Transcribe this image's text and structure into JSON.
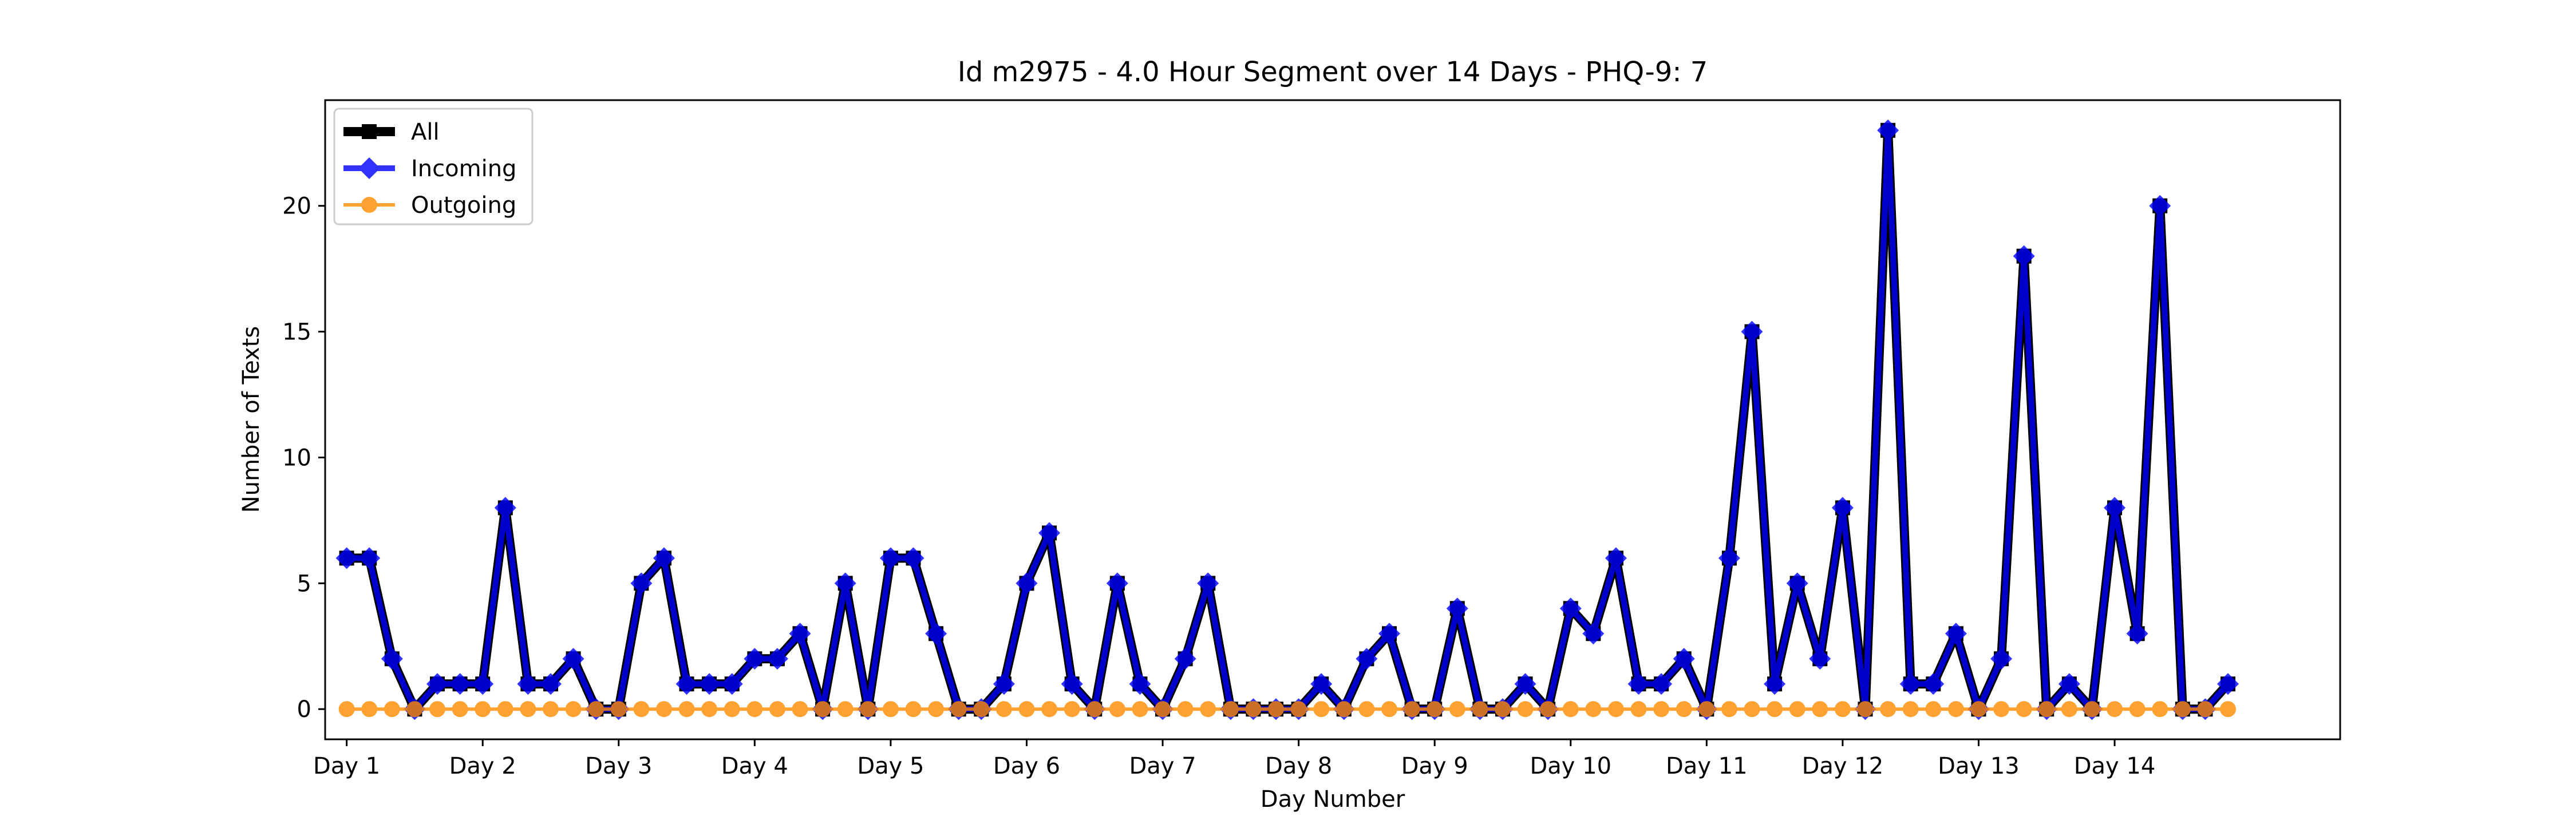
{
  "chart_data": {
    "type": "line",
    "title": "Id m2975 - 4.0 Hour Segment over 14 Days - PHQ-9: 7",
    "xlabel": "Day Number",
    "ylabel": "Number of Texts",
    "ylim": [
      -1.2,
      24.2
    ],
    "yticks": [
      0,
      5,
      10,
      15,
      20
    ],
    "xlim": [
      -0.95,
      87.95
    ],
    "xticks": [
      {
        "value": 0,
        "label": "Day 1"
      },
      {
        "value": 6,
        "label": "Day 2"
      },
      {
        "value": 12,
        "label": "Day 3"
      },
      {
        "value": 18,
        "label": "Day 4"
      },
      {
        "value": 24,
        "label": "Day 5"
      },
      {
        "value": 30,
        "label": "Day 6"
      },
      {
        "value": 36,
        "label": "Day 7"
      },
      {
        "value": 42,
        "label": "Day 8"
      },
      {
        "value": 48,
        "label": "Day 9"
      },
      {
        "value": 54,
        "label": "Day 10"
      },
      {
        "value": 60,
        "label": "Day 11"
      },
      {
        "value": 66,
        "label": "Day 12"
      },
      {
        "value": 72,
        "label": "Day 13"
      },
      {
        "value": 78,
        "label": "Day 14"
      }
    ],
    "legend": "upper-left",
    "grid": false,
    "series": [
      {
        "name": "All",
        "color": "#000000",
        "marker": "square",
        "values": [
          6,
          6,
          2,
          0,
          1,
          1,
          1,
          8,
          1,
          1,
          2,
          0,
          0,
          5,
          6,
          1,
          1,
          1,
          2,
          2,
          3,
          0,
          5,
          0,
          6,
          6,
          3,
          0,
          0,
          1,
          5,
          7,
          1,
          0,
          5,
          1,
          0,
          2,
          5,
          0,
          0,
          0,
          0,
          1,
          0,
          2,
          3,
          0,
          0,
          4,
          0,
          0,
          1,
          0,
          4,
          3,
          6,
          1,
          1,
          2,
          0,
          6,
          15,
          1,
          5,
          2,
          8,
          0,
          23,
          1,
          1,
          3,
          0,
          2,
          18,
          0,
          1,
          0,
          8,
          3,
          20,
          0,
          0,
          1
        ]
      },
      {
        "name": "Incoming",
        "color": "#0000ff",
        "marker": "diamond",
        "values": [
          6,
          6,
          2,
          0,
          1,
          1,
          1,
          8,
          1,
          1,
          2,
          0,
          0,
          5,
          6,
          1,
          1,
          1,
          2,
          2,
          3,
          0,
          5,
          0,
          6,
          6,
          3,
          0,
          0,
          1,
          5,
          7,
          1,
          0,
          5,
          1,
          0,
          2,
          5,
          0,
          0,
          0,
          0,
          1,
          0,
          2,
          3,
          0,
          0,
          4,
          0,
          0,
          1,
          0,
          4,
          3,
          6,
          1,
          1,
          2,
          0,
          6,
          15,
          1,
          5,
          2,
          8,
          0,
          23,
          1,
          1,
          3,
          0,
          2,
          18,
          0,
          1,
          0,
          8,
          3,
          20,
          0,
          0,
          1
        ]
      },
      {
        "name": "Outgoing",
        "color": "#ff8c00",
        "marker": "circle",
        "values": [
          0,
          0,
          0,
          0,
          0,
          0,
          0,
          0,
          0,
          0,
          0,
          0,
          0,
          0,
          0,
          0,
          0,
          0,
          0,
          0,
          0,
          0,
          0,
          0,
          0,
          0,
          0,
          0,
          0,
          0,
          0,
          0,
          0,
          0,
          0,
          0,
          0,
          0,
          0,
          0,
          0,
          0,
          0,
          0,
          0,
          0,
          0,
          0,
          0,
          0,
          0,
          0,
          0,
          0,
          0,
          0,
          0,
          0,
          0,
          0,
          0,
          0,
          0,
          0,
          0,
          0,
          0,
          0,
          0,
          0,
          0,
          0,
          0,
          0,
          0,
          0,
          0,
          0,
          0,
          0,
          0,
          0,
          0,
          0
        ]
      }
    ]
  }
}
